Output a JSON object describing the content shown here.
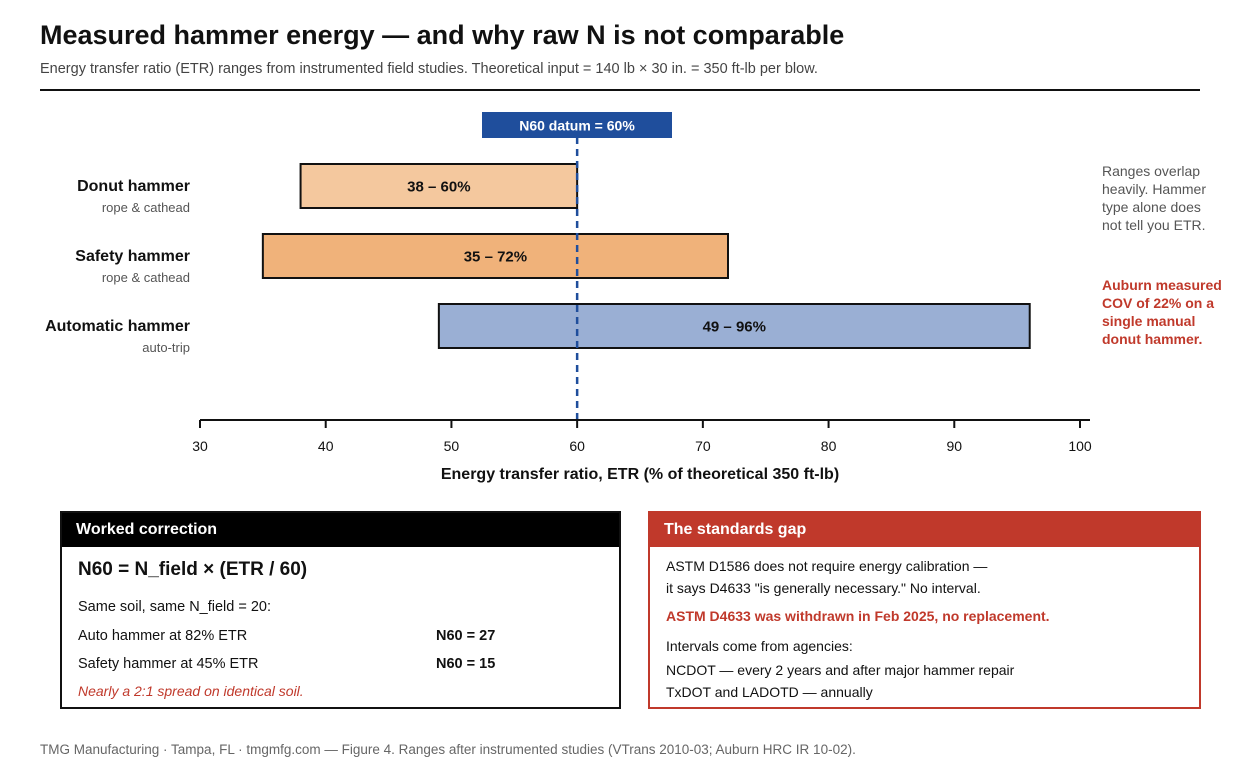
{
  "header": {
    "title": "Measured hammer energy — and why raw N is not comparable",
    "subtitle": "Energy transfer ratio (ETR) ranges from instrumented field studies. Theoretical input = 140 lb × 30 in. = 350 ft-lb per blow."
  },
  "chart_data": {
    "type": "bar",
    "orientation": "horizontal-range",
    "xlabel": "Energy transfer ratio, ETR (% of theoretical 350 ft-lb)",
    "xlim": [
      30,
      100
    ],
    "ticks": [
      30,
      40,
      50,
      60,
      70,
      80,
      90,
      100
    ],
    "series": [
      {
        "name": "Donut hammer",
        "sublabel": "rope & cathead",
        "low": 38,
        "high": 60,
        "label": "38 – 60%",
        "color": "#f4c89e"
      },
      {
        "name": "Safety hammer",
        "sublabel": "rope & cathead",
        "low": 35,
        "high": 72,
        "label": "35 – 72%",
        "color": "#f0b27a"
      },
      {
        "name": "Automatic hammer",
        "sublabel": "auto-trip",
        "low": 49,
        "high": 96,
        "label": "49 – 96%",
        "color": "#9aafd4"
      }
    ],
    "reference": {
      "value": 60,
      "label": "N60 datum = 60%",
      "color": "#1f4e9c"
    },
    "annotations": [
      {
        "text": "Ranges overlap heavily. Hammer type alone does not tell you ETR.",
        "lines": [
          "Ranges overlap",
          "heavily. Hammer",
          "type alone does",
          "not tell you ETR."
        ],
        "color": "#555555",
        "bold": false
      },
      {
        "text": "Auburn measured COV of 22% on a single manual donut hammer.",
        "lines": [
          "Auburn measured",
          "COV of 22% on a",
          "single manual",
          "donut hammer."
        ],
        "color": "#c0392b",
        "bold": true
      }
    ],
    "grid": false,
    "legend": "none"
  },
  "worked": {
    "heading": "Worked correction",
    "formula": "N60 = N_field × (ETR / 60)",
    "intro": "Same soil, same N_field = 20:",
    "rows": [
      {
        "label": "Auto hammer at 82% ETR",
        "value": "N60 = 27"
      },
      {
        "label": "Safety hammer at 45% ETR",
        "value": "N60 = 15"
      }
    ],
    "note": "Nearly a 2:1 spread on identical soil."
  },
  "gap": {
    "heading": "The standards gap",
    "line1": "ASTM D1586 does not require energy calibration —",
    "line2": "it says D4633 \"is generally necessary.\" No interval.",
    "warning": "ASTM D4633 was withdrawn in Feb 2025, no replacement.",
    "intervals_intro": "Intervals come from agencies:",
    "agencies": [
      "NCDOT — every 2 years and after major hammer repair",
      "TxDOT and LADOTD — annually"
    ]
  },
  "footer": "TMG Manufacturing · Tampa, FL · tmgmfg.com — Figure 4. Ranges after instrumented studies (VTrans 2010-03; Auburn HRC IR 10-02)."
}
